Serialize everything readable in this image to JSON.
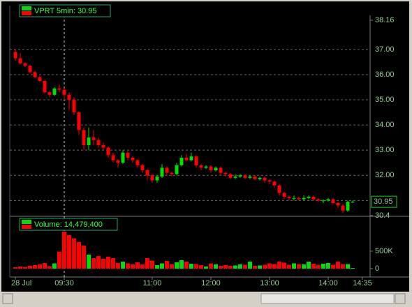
{
  "chart_data": [
    {
      "type": "candlestick",
      "title": "VPRT 5min: 30.95",
      "last_price": 30.95,
      "up_color": "#00e000",
      "down_color": "#ff0000",
      "ylim": [
        30.4,
        38.16
      ],
      "yticks": [
        30.4,
        {
          "value": 31,
          "label": "31.00"
        },
        {
          "value": 32,
          "label": "32.00"
        },
        {
          "value": 33,
          "label": "33.00"
        },
        {
          "value": 34,
          "label": "34.00"
        },
        {
          "value": 35,
          "label": "35.00"
        },
        {
          "value": 36,
          "label": "36.00"
        },
        {
          "value": 37,
          "label": "37.00"
        },
        38.16
      ],
      "xticks": [
        {
          "value": 0,
          "label": "28 Jul"
        },
        {
          "value": 10,
          "label": "09:30"
        },
        {
          "value": 28,
          "label": "11:00"
        },
        {
          "value": 40,
          "label": "12:00"
        },
        {
          "value": 52,
          "label": "13:00"
        },
        {
          "value": 64,
          "label": "14:00"
        },
        {
          "value": 71,
          "label": "14:35"
        }
      ],
      "grid": true,
      "candles": {
        "open": [
          36.9,
          36.65,
          36.45,
          36.35,
          36.1,
          35.9,
          35.75,
          35.3,
          35.2,
          35.45,
          35.4,
          35.2,
          35.0,
          34.5,
          33.8,
          33.2,
          33.5,
          33.4,
          33.2,
          33.1,
          32.8,
          32.6,
          32.5,
          32.9,
          32.7,
          32.6,
          32.4,
          32.2,
          32.0,
          31.8,
          31.95,
          32.3,
          32.1,
          32.05,
          32.4,
          32.7,
          32.6,
          32.75,
          32.4,
          32.3,
          32.35,
          32.2,
          32.3,
          32.1,
          32.05,
          31.9,
          31.95,
          32.0,
          31.9,
          31.95,
          31.85,
          31.9,
          31.8,
          31.75,
          31.6,
          31.3,
          31.15,
          31.1,
          31.1,
          31.05,
          31.1,
          31.15,
          31.05,
          31.0,
          31.0,
          31.05,
          30.9,
          30.8,
          30.6,
          30.95
        ],
        "high": [
          37.0,
          36.85,
          36.5,
          36.4,
          36.15,
          35.95,
          35.8,
          35.35,
          35.5,
          35.6,
          35.45,
          35.3,
          35.1,
          34.55,
          33.9,
          33.9,
          33.8,
          33.5,
          33.3,
          33.15,
          32.9,
          32.65,
          33.0,
          32.95,
          32.75,
          32.65,
          32.45,
          32.25,
          32.05,
          32.0,
          32.45,
          32.35,
          32.15,
          32.5,
          32.8,
          32.85,
          32.9,
          32.8,
          32.45,
          32.4,
          32.4,
          32.35,
          32.35,
          32.15,
          32.1,
          32.05,
          32.05,
          32.05,
          32.0,
          32.0,
          31.95,
          31.95,
          31.85,
          31.8,
          31.65,
          31.35,
          31.2,
          31.2,
          31.15,
          31.2,
          31.2,
          31.2,
          31.1,
          31.05,
          31.1,
          31.1,
          30.95,
          30.85,
          31.0,
          31.0
        ],
        "low": [
          36.55,
          36.4,
          36.3,
          36.05,
          35.85,
          35.7,
          35.25,
          35.1,
          35.15,
          35.3,
          35.0,
          34.6,
          34.4,
          33.6,
          33.0,
          33.0,
          33.2,
          33.1,
          33.0,
          32.7,
          32.5,
          32.3,
          32.45,
          32.6,
          32.5,
          32.3,
          32.1,
          31.8,
          31.7,
          31.7,
          31.9,
          32.0,
          31.95,
          32.0,
          32.35,
          32.55,
          32.55,
          32.3,
          32.2,
          32.25,
          32.1,
          32.15,
          32.0,
          31.95,
          31.85,
          31.85,
          31.9,
          31.85,
          31.85,
          31.8,
          31.8,
          31.7,
          31.65,
          31.5,
          31.2,
          31.05,
          31.0,
          31.0,
          31.0,
          31.0,
          31.05,
          31.0,
          30.95,
          30.9,
          30.95,
          30.85,
          30.7,
          30.5,
          30.55,
          30.9
        ],
        "close": [
          36.65,
          36.45,
          36.35,
          36.1,
          35.9,
          35.75,
          35.3,
          35.2,
          35.45,
          35.4,
          35.2,
          35.0,
          34.5,
          33.8,
          33.2,
          33.5,
          33.4,
          33.2,
          33.1,
          32.8,
          32.6,
          32.5,
          32.9,
          32.7,
          32.6,
          32.4,
          32.2,
          32.0,
          31.8,
          31.95,
          32.3,
          32.1,
          32.05,
          32.4,
          32.7,
          32.6,
          32.75,
          32.4,
          32.3,
          32.35,
          32.2,
          32.3,
          32.1,
          32.05,
          31.9,
          31.95,
          32.0,
          31.9,
          31.95,
          31.85,
          31.9,
          31.8,
          31.75,
          31.6,
          31.3,
          31.15,
          31.1,
          31.1,
          31.05,
          31.1,
          31.15,
          31.05,
          31.0,
          31.0,
          31.05,
          30.9,
          30.8,
          30.6,
          30.95,
          30.95
        ]
      }
    },
    {
      "type": "bar",
      "title": "Volume: 14,479,400",
      "ylim": [
        0,
        1460000
      ],
      "yticks": [
        0,
        {
          "value": 500000,
          "label": "500K"
        }
      ],
      "values": [
        40000,
        60000,
        50000,
        80000,
        100000,
        120000,
        160000,
        70000,
        150000,
        480000,
        1060000,
        960000,
        870000,
        760000,
        660000,
        400000,
        300000,
        360000,
        280000,
        340000,
        300000,
        160000,
        200000,
        150000,
        120000,
        180000,
        120000,
        300000,
        230000,
        100000,
        150000,
        220000,
        130000,
        180000,
        240000,
        200000,
        140000,
        130000,
        100000,
        60000,
        150000,
        120000,
        80000,
        100000,
        80000,
        90000,
        120000,
        110000,
        200000,
        80000,
        90000,
        110000,
        150000,
        130000,
        200000,
        170000,
        110000,
        150000,
        130000,
        120000,
        200000,
        140000,
        110000,
        140000,
        160000,
        110000,
        200000,
        120000,
        130000,
        20000
      ]
    }
  ]
}
